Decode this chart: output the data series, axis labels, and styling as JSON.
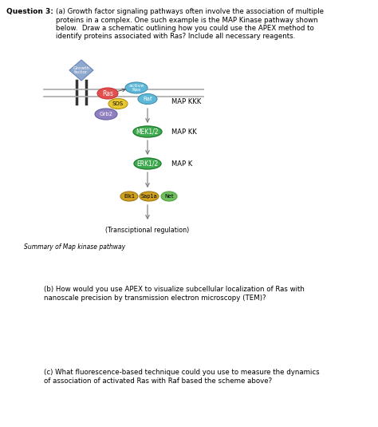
{
  "title": "Question 3:",
  "part_a_lines": [
    "(a) Growth factor signaling pathways often involve the association of multiple",
    "proteins in a complex. One such example is the MAP Kinase pathway shown",
    "below.  Draw a schematic outlining how you could use the APEX method to",
    "identify proteins associated with Ras? Include all necessary reagents."
  ],
  "part_b_lines": [
    "(b) How would you use APEX to visualize subcellular localization of Ras with",
    "nanoscale precision by transmission electron microscopy (TEM)?"
  ],
  "part_c_lines": [
    "(c) What fluorescence-based technique could you use to measure the dynamics",
    "of association of activated Ras with Raf based the scheme above?"
  ],
  "summary_label": "Summary of Map kinase pathway",
  "transcriptional_label": "(Transciptional regulation)",
  "map_kkk_label": "MAP KKK",
  "map_kk_label": "MAP KK",
  "map_k_label": "MAP K",
  "background_color": "#ffffff",
  "membrane_color": "#aaaaaa",
  "growth_factor_color": "#8da8cc",
  "ras_color": "#e05050",
  "active_ras_color": "#60b8d8",
  "sos_color": "#e8c830",
  "raf_color": "#60b8d8",
  "grb2_color": "#9080c0",
  "mek_color": "#40aa50",
  "erk_color": "#40aa50",
  "elk_color": "#d0a020",
  "sap_color": "#d0a020",
  "net_color": "#70c060"
}
